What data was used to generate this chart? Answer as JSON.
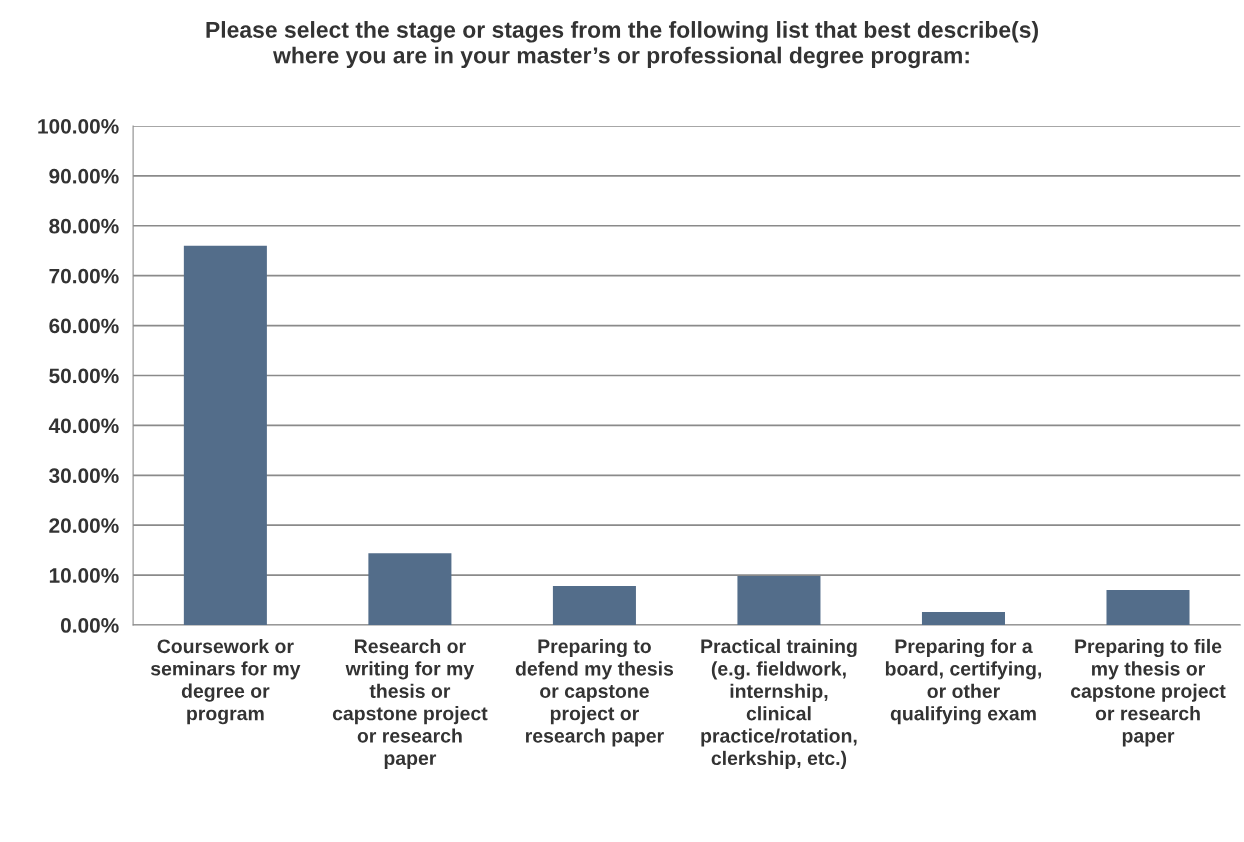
{
  "chart_data": {
    "type": "bar",
    "title": "Please select the stage or stages from the following list that best describe(s)\nwhere you are in your master’s or professional degree program:",
    "categories": [
      "Coursework or\nseminars for my\ndegree or\nprogram",
      "Research or\nwriting for my\nthesis or\ncapstone project\nor research\npaper",
      "Preparing to\ndefend my thesis\nor capstone\nproject or\nresearch paper",
      "Practical training\n(e.g. fieldwork,\ninternship,\nclinical\npractice/rotation,\nclerkship, etc.)",
      "Preparing for a\nboard, certifying,\nor other\nqualifying exam",
      "Preparing to file\nmy thesis or\ncapstone project\nor research\npaper"
    ],
    "values": [
      76.0,
      14.4,
      7.8,
      9.8,
      2.6,
      7.0
    ],
    "color": "#536d8a",
    "ylim": [
      0,
      100
    ],
    "yticks": [
      {
        "value": 0,
        "label": "0.00%"
      },
      {
        "value": 10,
        "label": "10.00%"
      },
      {
        "value": 20,
        "label": "20.00%"
      },
      {
        "value": 30,
        "label": "30.00%"
      },
      {
        "value": 40,
        "label": "40.00%"
      },
      {
        "value": 50,
        "label": "50.00%"
      },
      {
        "value": 60,
        "label": "60.00%"
      },
      {
        "value": 70,
        "label": "70.00%"
      },
      {
        "value": 80,
        "label": "80.00%"
      },
      {
        "value": 90,
        "label": "90.00%"
      },
      {
        "value": 100,
        "label": "100.00%"
      }
    ],
    "grid": "y"
  }
}
